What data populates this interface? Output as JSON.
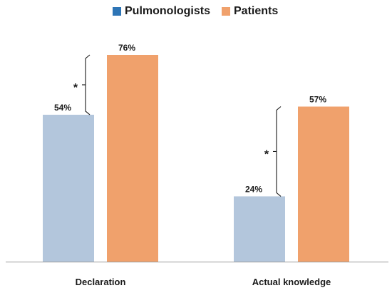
{
  "chart_data": {
    "type": "bar",
    "categories": [
      "Declaration",
      "Actual knowledge"
    ],
    "series": [
      {
        "name": "Pulmonologists",
        "values": [
          54,
          24
        ],
        "labels": [
          "54%",
          "24%"
        ],
        "color": "#b3c6dc",
        "legend_color": "#2e75b6"
      },
      {
        "name": "Patients",
        "values": [
          76,
          57
        ],
        "labels": [
          "76%",
          "57%"
        ],
        "color": "#f0a16c",
        "legend_color": "#f0a16c"
      }
    ],
    "annotations": [
      {
        "category": "Declaration",
        "text": "*",
        "type": "significance-bracket"
      },
      {
        "category": "Actual knowledge",
        "text": "*",
        "type": "significance-bracket"
      }
    ],
    "ylim": [
      0,
      100
    ],
    "legend_position": "top-center",
    "grid": false
  }
}
